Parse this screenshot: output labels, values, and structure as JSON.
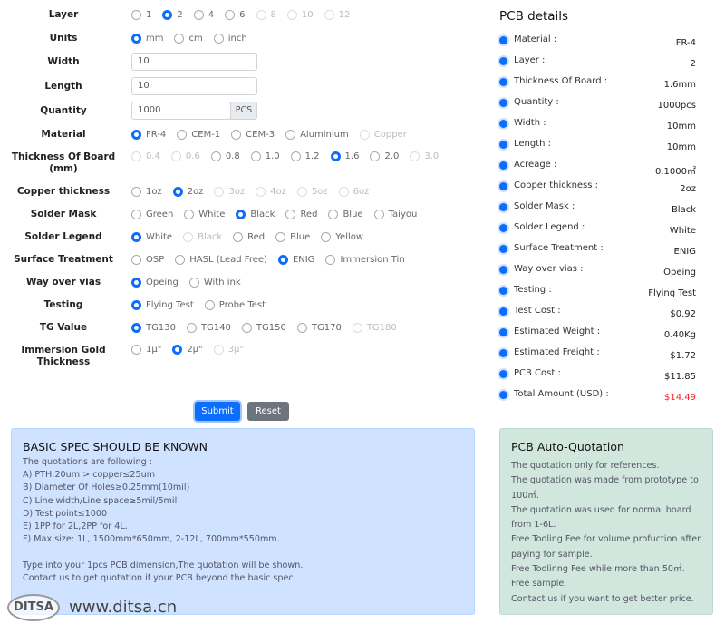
{
  "form": {
    "rows": [
      {
        "label": "Layer",
        "options": [
          {
            "t": "1"
          },
          {
            "t": "2",
            "on": true
          },
          {
            "t": "4"
          },
          {
            "t": "6"
          },
          {
            "t": "8",
            "dis": true
          },
          {
            "t": "10",
            "dis": true
          },
          {
            "t": "12",
            "dis": true
          }
        ]
      },
      {
        "label": "Units",
        "options": [
          {
            "t": "mm",
            "on": true
          },
          {
            "t": "cm"
          },
          {
            "t": "inch"
          }
        ]
      },
      {
        "label": "Width",
        "input": "10"
      },
      {
        "label": "Length",
        "input": "10"
      },
      {
        "label": "Quantity",
        "input": "1000",
        "addon": "PCS"
      },
      {
        "label": "Material",
        "options": [
          {
            "t": "FR-4",
            "on": true
          },
          {
            "t": "CEM-1"
          },
          {
            "t": "CEM-3"
          },
          {
            "t": "Aluminium"
          },
          {
            "t": "Copper",
            "dis": true
          }
        ]
      },
      {
        "label": "Thickness Of Board (mm)",
        "options": [
          {
            "t": "0.4",
            "dis": true
          },
          {
            "t": "0.6",
            "dis": true
          },
          {
            "t": "0.8"
          },
          {
            "t": "1.0"
          },
          {
            "t": "1.2"
          },
          {
            "t": "1.6",
            "on": true
          },
          {
            "t": "2.0"
          },
          {
            "t": "3.0",
            "dis": true
          }
        ]
      },
      {
        "label": "Copper thickness",
        "options": [
          {
            "t": "1oz"
          },
          {
            "t": "2oz",
            "on": true
          },
          {
            "t": "3oz",
            "dis": true
          },
          {
            "t": "4oz",
            "dis": true
          },
          {
            "t": "5oz",
            "dis": true
          },
          {
            "t": "6oz",
            "dis": true
          }
        ]
      },
      {
        "label": "Solder Mask",
        "options": [
          {
            "t": "Green"
          },
          {
            "t": "White"
          },
          {
            "t": "Black",
            "on": true
          },
          {
            "t": "Red"
          },
          {
            "t": "Blue"
          },
          {
            "t": "Taiyou"
          }
        ]
      },
      {
        "label": "Solder Legend",
        "options": [
          {
            "t": "White",
            "on": true
          },
          {
            "t": "Black",
            "dis": true
          },
          {
            "t": "Red"
          },
          {
            "t": "Blue"
          },
          {
            "t": "Yellow"
          }
        ]
      },
      {
        "label": "Surface Treatment",
        "options": [
          {
            "t": "OSP"
          },
          {
            "t": "HASL (Lead Free)"
          },
          {
            "t": "ENIG",
            "on": true
          },
          {
            "t": "Immersion Tin"
          }
        ]
      },
      {
        "label": "Way over vias",
        "options": [
          {
            "t": "Opeing",
            "on": true
          },
          {
            "t": "With ink"
          }
        ]
      },
      {
        "label": "Testing",
        "options": [
          {
            "t": "Flying Test",
            "on": true
          },
          {
            "t": "Probe Test"
          }
        ]
      },
      {
        "label": "TG Value",
        "options": [
          {
            "t": "TG130",
            "on": true
          },
          {
            "t": "TG140"
          },
          {
            "t": "TG150"
          },
          {
            "t": "TG170"
          },
          {
            "t": "TG180",
            "dis": true
          }
        ]
      },
      {
        "label": "Immersion Gold Thickness",
        "options": [
          {
            "t": "1μ\""
          },
          {
            "t": "2μ\"",
            "on": true
          },
          {
            "t": "3μ\"",
            "dis": true
          }
        ]
      }
    ],
    "submit": "Submit",
    "reset": "Reset"
  },
  "details": {
    "title": "PCB details",
    "items": [
      {
        "k": "Material :",
        "v": "FR-4"
      },
      {
        "k": "Layer :",
        "v": "2"
      },
      {
        "k": "Thickness Of Board :",
        "v": "1.6mm"
      },
      {
        "k": "Quantity :",
        "v": "1000pcs"
      },
      {
        "k": "Width :",
        "v": "10mm"
      },
      {
        "k": "Length :",
        "v": "10mm"
      },
      {
        "k": "Acreage :",
        "v": "0.1000㎡"
      },
      {
        "k": "Copper thickness :",
        "v": "2oz"
      },
      {
        "k": "Solder Mask :",
        "v": "Black"
      },
      {
        "k": "Solder Legend :",
        "v": "White"
      },
      {
        "k": "Surface Treatment :",
        "v": "ENIG"
      },
      {
        "k": "Way over vias :",
        "v": "Opeing"
      },
      {
        "k": "Testing :",
        "v": "Flying Test"
      },
      {
        "k": "Test Cost :",
        "v": "$0.92"
      },
      {
        "k": "Estimated Weight :",
        "v": "0.40Kg"
      },
      {
        "k": "Estimated Freight :",
        "v": "$1.72"
      },
      {
        "k": "PCB Cost :",
        "v": "$11.85"
      },
      {
        "k": "Total Amount (USD) :",
        "v": "$14.49",
        "red": true
      }
    ]
  },
  "spec": {
    "title": "BASIC SPEC SHOULD BE KNOWN",
    "lines": [
      "The quotations are following :",
      "A) PTH:20um > copper≤25um",
      "B) Diameter Of Holes≥0.25mm(10mil)",
      "C) Line width/Line space≥5mil/5mil",
      "D) Test point≤1000",
      "E) 1PP for 2L,2PP for 4L.",
      "F) Max size: 1L, 1500mm*650mm, 2-12L, 700mm*550mm.",
      "",
      "Type into your 1pcs PCB dimension,The quotation will be shown.",
      "Contact us to get quotation if your PCB beyond the basic spec."
    ]
  },
  "auto": {
    "title": "PCB Auto-Quotation",
    "lines": [
      "The quotation only for references.",
      "The quotation was made from prototype to 100㎡.",
      "The quotation was used for normal board from 1-6L.",
      "Free Tooling Fee for volume profuction after paying for sample.",
      "Free Toolinng Fee while more than 50㎡.",
      "Free sample.",
      "Contact us if you want to get better price."
    ]
  },
  "watermark": {
    "logo": "DITSA",
    "url": "www.ditsa.cn"
  },
  "colors": {
    "accent": "#0d6efd",
    "total": "#ff1d2b",
    "spec_bg": "#cfe2ff",
    "auto_bg": "#d1e7dd"
  }
}
